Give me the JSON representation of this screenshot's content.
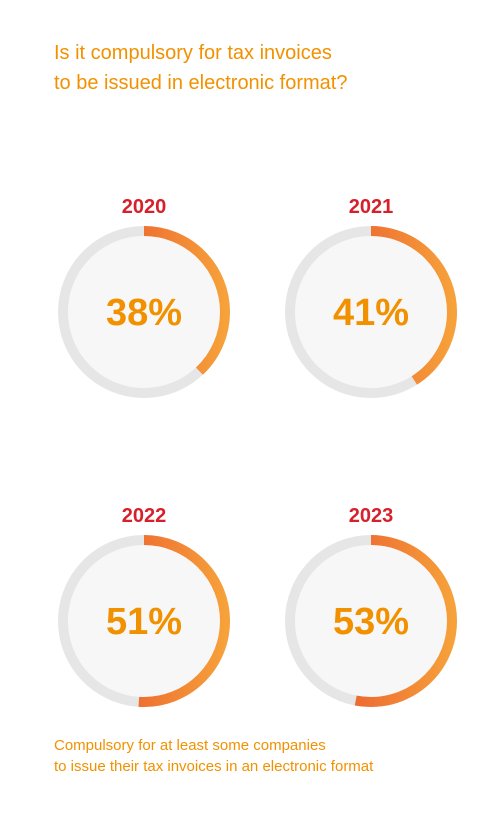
{
  "title_lines": [
    "Is it compulsory for tax invoices",
    "to be issued in electronic format?"
  ],
  "footnote_lines": [
    "Compulsory for at least some companies",
    "to issue their tax invoices in an electronic format"
  ],
  "colors": {
    "title": "#f29100",
    "year": "#d6202b",
    "track": "#e6e6e6",
    "inner": "#f7f7f7",
    "arc_start": "#e8452a",
    "arc_end": "#f6a13a"
  },
  "chart_data": [
    {
      "type": "pie",
      "category": "2020",
      "value": 38,
      "label": "38%"
    },
    {
      "type": "pie",
      "category": "2021",
      "value": 41,
      "label": "41%"
    },
    {
      "type": "pie",
      "category": "2022",
      "value": 51,
      "label": "51%"
    },
    {
      "type": "pie",
      "category": "2023",
      "value": 53,
      "label": "53%"
    }
  ]
}
